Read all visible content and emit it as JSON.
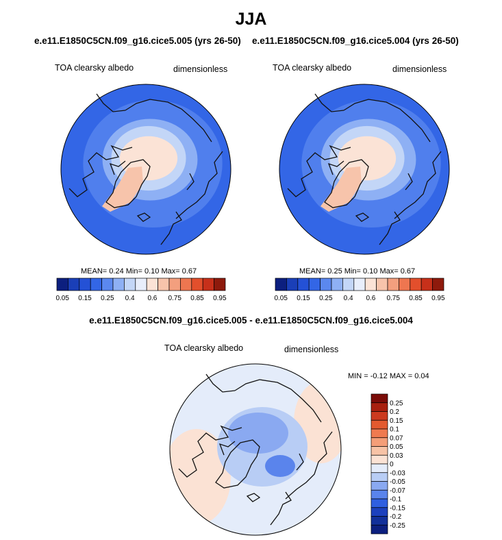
{
  "page": {
    "title": "JJA",
    "subtitle_left": "e.e11.E1850C5CN.f09_g16.cice5.005 (yrs 26-50)",
    "subtitle_right": "e.e11.E1850C5CN.f09_g16.cice5.004 (yrs 26-50)",
    "diff_title": "e.e11.E1850C5CN.f09_g16.cice5.005 - e.e11.E1850C5CN.f09_g16.cice5.004"
  },
  "palettes": {
    "abs": [
      "#0c1f7f",
      "#1a3fb8",
      "#2451d6",
      "#3366e6",
      "#5b88ef",
      "#8eb0f4",
      "#c3d6f7",
      "#e8eefb",
      "#fbe3d6",
      "#f7c4ab",
      "#f39f7e",
      "#ee7650",
      "#e34f2c",
      "#c7301a",
      "#8e1a0c"
    ],
    "diff": [
      "#0c1f7f",
      "#1c40bd",
      "#2f5fe0",
      "#5a84ec",
      "#8aa9f1",
      "#b8cdf5",
      "#e4ecfa",
      "#fbe2d4",
      "#f7c3a6",
      "#f49e78",
      "#ef7a50",
      "#e85630",
      "#cc3a1f",
      "#8e1a0c"
    ]
  },
  "chart_data": [
    {
      "type": "polar_map",
      "name": "control",
      "title": "TOA clearsky albedo",
      "units": "dimensionless",
      "stats": {
        "mean_label": "MEAN=",
        "mean": "0.24",
        "min_label": "Min=",
        "min": "0.10",
        "max_label": "Max=",
        "max": "0.67"
      },
      "colorbar": {
        "orientation": "horizontal",
        "ticks": [
          "0.05",
          "0.15",
          "0.25",
          "0.4",
          "0.6",
          "0.75",
          "0.85",
          "0.95"
        ]
      }
    },
    {
      "type": "polar_map",
      "name": "test",
      "title": "TOA clearsky albedo",
      "units": "dimensionless",
      "stats": {
        "mean_label": "MEAN=",
        "mean": "0.25",
        "min_label": "Min=",
        "min": "0.10",
        "max_label": "Max=",
        "max": "0.67"
      },
      "colorbar": {
        "orientation": "horizontal",
        "ticks": [
          "0.05",
          "0.15",
          "0.25",
          "0.4",
          "0.6",
          "0.75",
          "0.85",
          "0.95"
        ]
      }
    },
    {
      "type": "polar_map",
      "name": "difference",
      "title": "TOA clearsky albedo",
      "units": "dimensionless",
      "stats": {
        "min_label": "MIN =",
        "min": "-0.12",
        "max_label": "MAX =",
        "max": "0.04"
      },
      "colorbar": {
        "orientation": "vertical",
        "ticks": [
          "0.25",
          "0.2",
          "0.15",
          "0.1",
          "0.07",
          "0.05",
          "0.03",
          "0",
          "-0.03",
          "-0.05",
          "-0.07",
          "-0.1",
          "-0.15",
          "-0.2",
          "-0.25"
        ]
      }
    }
  ]
}
